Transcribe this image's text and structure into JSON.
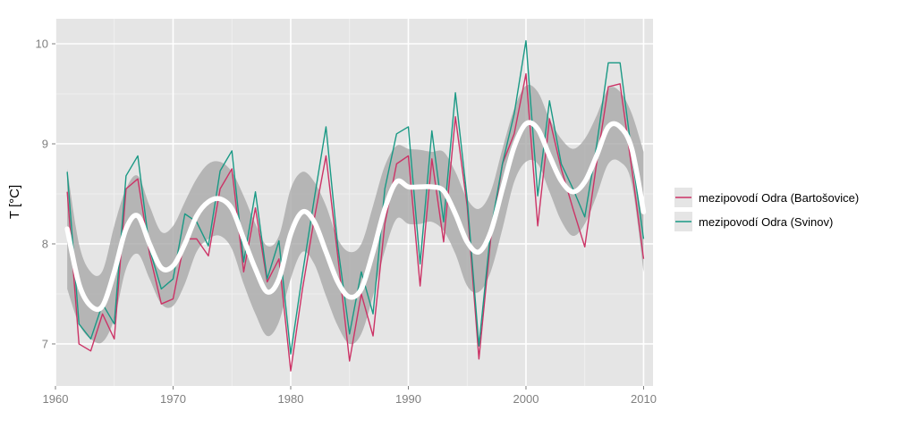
{
  "chart_data": {
    "type": "line",
    "title": "",
    "xlabel": "",
    "ylabel": "T [°C]",
    "xlim": [
      1960,
      2010.8
    ],
    "ylim": [
      6.58,
      10.25
    ],
    "x_ticks": [
      1960,
      1970,
      1980,
      1990,
      2000,
      2010
    ],
    "y_ticks": [
      7,
      8,
      9,
      10
    ],
    "x_tick_labels": [
      "1960",
      "1970",
      "1980",
      "1990",
      "2000",
      "2010"
    ],
    "y_tick_labels": [
      "7",
      "8",
      "9",
      "10"
    ],
    "grid": true,
    "legend_position": "right",
    "colors": {
      "panel": "#e5e5e5",
      "grid_major": "#ffffff",
      "grid_minor": "#f2f2f2",
      "band": "#a9a9a9",
      "trend": "#ffffff",
      "tick": "#7f7f7f"
    },
    "x": [
      1961,
      1962,
      1963,
      1964,
      1965,
      1966,
      1967,
      1968,
      1969,
      1970,
      1971,
      1972,
      1973,
      1974,
      1975,
      1976,
      1977,
      1978,
      1979,
      1980,
      1981,
      1982,
      1983,
      1984,
      1985,
      1986,
      1987,
      1988,
      1989,
      1990,
      1991,
      1992,
      1993,
      1994,
      1995,
      1996,
      1997,
      1998,
      1999,
      2000,
      2001,
      2002,
      2003,
      2004,
      2005,
      2006,
      2007,
      2008,
      2009,
      2010
    ],
    "series": [
      {
        "name": "mezipovodí Odra (Bartošovice)",
        "color": "#cc3366",
        "values": [
          8.52,
          7.0,
          6.93,
          7.3,
          7.05,
          8.55,
          8.65,
          7.9,
          7.4,
          7.45,
          8.05,
          8.05,
          7.88,
          8.55,
          8.75,
          7.72,
          8.36,
          7.62,
          7.85,
          6.73,
          7.55,
          8.25,
          8.88,
          7.88,
          6.83,
          7.5,
          7.08,
          8.2,
          8.8,
          8.88,
          7.58,
          8.85,
          8.02,
          9.27,
          8.38,
          6.85,
          8.05,
          8.8,
          9.1,
          9.7,
          8.18,
          9.25,
          8.75,
          8.35,
          7.97,
          8.8,
          9.57,
          9.6,
          8.75,
          7.85
        ]
      },
      {
        "name": "mezipovodí Odra (Svinov)",
        "color": "#1a9985",
        "values": [
          8.72,
          7.2,
          7.05,
          7.4,
          7.2,
          8.68,
          8.88,
          7.95,
          7.55,
          7.65,
          8.3,
          8.22,
          7.98,
          8.73,
          8.93,
          7.82,
          8.52,
          7.65,
          8.03,
          6.9,
          7.7,
          8.45,
          9.17,
          7.98,
          7.1,
          7.72,
          7.3,
          8.55,
          9.1,
          9.17,
          7.8,
          9.13,
          8.22,
          9.51,
          8.45,
          6.98,
          8.13,
          8.8,
          9.3,
          10.03,
          8.48,
          9.43,
          8.8,
          8.55,
          8.27,
          8.98,
          9.81,
          9.81,
          8.9,
          8.05
        ]
      }
    ],
    "trend": {
      "values": [
        8.15,
        7.6,
        7.38,
        7.38,
        7.72,
        8.15,
        8.28,
        8.0,
        7.76,
        7.78,
        8.0,
        8.28,
        8.42,
        8.45,
        8.35,
        8.05,
        7.75,
        7.52,
        7.65,
        8.1,
        8.32,
        8.22,
        7.92,
        7.62,
        7.47,
        7.55,
        7.92,
        8.35,
        8.62,
        8.57,
        8.57,
        8.57,
        8.53,
        8.3,
        8.02,
        7.92,
        8.12,
        8.55,
        8.97,
        9.2,
        9.15,
        8.88,
        8.63,
        8.52,
        8.62,
        8.88,
        9.17,
        9.17,
        8.95,
        8.32
      ],
      "lower": [
        7.55,
        7.2,
        7.05,
        7.02,
        7.25,
        7.75,
        7.9,
        7.65,
        7.4,
        7.38,
        7.6,
        7.92,
        8.05,
        8.08,
        7.95,
        7.6,
        7.3,
        7.08,
        7.22,
        7.65,
        7.92,
        7.8,
        7.48,
        7.18,
        7.0,
        7.1,
        7.48,
        7.93,
        8.25,
        8.2,
        8.2,
        8.22,
        8.13,
        7.9,
        7.58,
        7.52,
        7.72,
        8.15,
        8.62,
        8.82,
        8.8,
        8.52,
        8.23,
        8.08,
        8.2,
        8.48,
        8.8,
        8.82,
        8.6,
        7.72
      ],
      "upper": [
        8.75,
        8.0,
        7.72,
        7.73,
        8.18,
        8.55,
        8.68,
        8.38,
        8.12,
        8.18,
        8.42,
        8.65,
        8.8,
        8.82,
        8.72,
        8.48,
        8.2,
        7.98,
        8.08,
        8.55,
        8.72,
        8.62,
        8.38,
        8.05,
        7.92,
        8.0,
        8.38,
        8.78,
        8.98,
        8.95,
        8.94,
        8.92,
        8.92,
        8.72,
        8.45,
        8.35,
        8.52,
        8.95,
        9.35,
        9.58,
        9.52,
        9.25,
        9.05,
        8.95,
        9.05,
        9.28,
        9.55,
        9.52,
        9.3,
        8.92
      ]
    }
  }
}
